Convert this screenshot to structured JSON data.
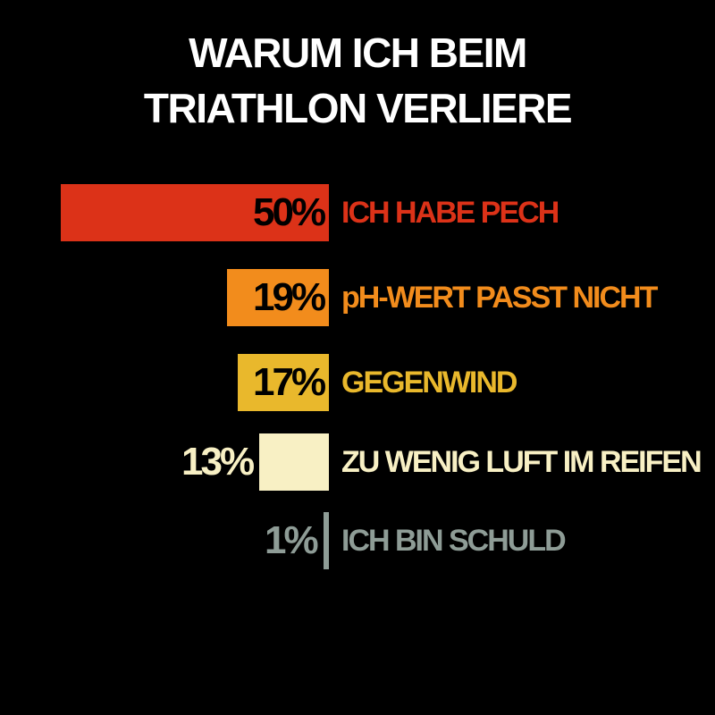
{
  "chart_data": {
    "type": "bar",
    "orientation": "horizontal",
    "title": "WARUM ICH BEIM TRIATHLON VERLIERE",
    "categories": [
      "ICH HABE PECH",
      "pH-WERT PASST NICHT",
      "GEGENWIND",
      "ZU WENIG LUFT IM REIFEN",
      "ICH BIN SCHULD"
    ],
    "values": [
      50,
      19,
      17,
      13,
      1
    ],
    "value_labels": [
      "50%",
      "19%",
      "17%",
      "13%",
      "1%"
    ],
    "colors": [
      "#dc3218",
      "#f28c1c",
      "#e9b82c",
      "#f8f0c4",
      "#8e9c96"
    ],
    "xlim": [
      0,
      50
    ]
  }
}
